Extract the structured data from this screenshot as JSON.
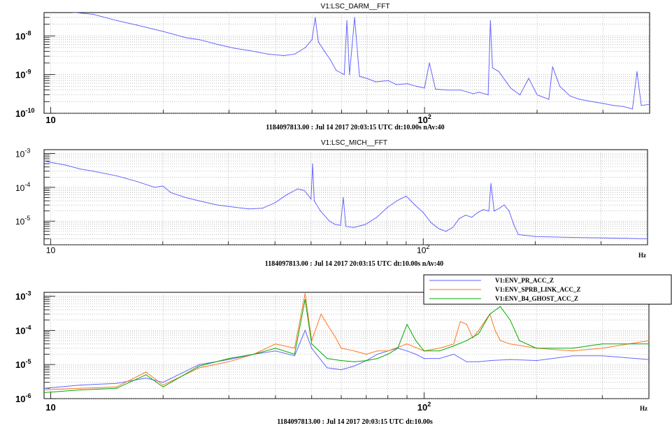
{
  "chart_data": [
    {
      "type": "line",
      "title": "V1:LSC_DARM__FFT",
      "caption": "1184097813.00 : Jul 14 2017 20:03:15 UTC dt:10.00s nAv:40",
      "xunit": "",
      "xscale": "log",
      "yscale": "log",
      "xlim": [
        9.6,
        400
      ],
      "ylim": [
        1e-10,
        4e-08
      ],
      "grid": true,
      "xticks": [
        {
          "v": 10,
          "b": "10",
          "e": ""
        },
        {
          "v": 100,
          "b": "10",
          "e": "2"
        }
      ],
      "yticks": [
        {
          "v": 1e-08,
          "b": "10",
          "e": "-8"
        },
        {
          "v": 1e-09,
          "b": "10",
          "e": "-9"
        },
        {
          "v": 1e-10,
          "b": "10",
          "e": "-10"
        }
      ],
      "colors": [
        "#6666ff"
      ],
      "series": [
        {
          "values": [
            [
              9.6,
              5e-08
            ],
            [
              11,
              4.2e-08
            ],
            [
              13,
              3.6e-08
            ],
            [
              15,
              2.5e-08
            ],
            [
              17,
              1.9e-08
            ],
            [
              20,
              1.3e-08
            ],
            [
              23,
              9e-09
            ],
            [
              25,
              8e-09
            ],
            [
              28,
              6e-09
            ],
            [
              31,
              4.8e-09
            ],
            [
              34,
              4.2e-09
            ],
            [
              38,
              3.4e-09
            ],
            [
              42,
              3.1e-09
            ],
            [
              45,
              3.4e-09
            ],
            [
              48,
              5e-09
            ],
            [
              50,
              8e-09
            ],
            [
              51,
              3e-08
            ],
            [
              52,
              7e-09
            ],
            [
              54,
              4e-09
            ],
            [
              56,
              2.4e-09
            ],
            [
              58,
              1.3e-09
            ],
            [
              61,
              1e-09
            ],
            [
              62,
              2.5e-08
            ],
            [
              63,
              1e-09
            ],
            [
              65,
              3e-08
            ],
            [
              67,
              9e-10
            ],
            [
              70,
              8e-10
            ],
            [
              74,
              6.5e-10
            ],
            [
              80,
              7e-10
            ],
            [
              84,
              5.5e-10
            ],
            [
              90,
              5.8e-10
            ],
            [
              95,
              5e-10
            ],
            [
              100,
              4.5e-10
            ],
            [
              103,
              2e-09
            ],
            [
              107,
              4.2e-10
            ],
            [
              115,
              4e-10
            ],
            [
              125,
              4e-10
            ],
            [
              135,
              3.2e-10
            ],
            [
              140,
              3.5e-10
            ],
            [
              148,
              3e-10
            ],
            [
              150,
              2.5e-08
            ],
            [
              152,
              1.5e-09
            ],
            [
              158,
              1.2e-09
            ],
            [
              170,
              4.5e-10
            ],
            [
              180,
              3e-10
            ],
            [
              190,
              8e-10
            ],
            [
              200,
              3e-10
            ],
            [
              215,
              2.3e-10
            ],
            [
              220,
              1.6e-09
            ],
            [
              230,
              5e-10
            ],
            [
              245,
              2.8e-10
            ],
            [
              260,
              2.3e-10
            ],
            [
              280,
              2e-10
            ],
            [
              300,
              1.8e-10
            ],
            [
              320,
              1.6e-10
            ],
            [
              340,
              1.5e-10
            ],
            [
              360,
              1.3e-10
            ],
            [
              370,
              1.2e-09
            ],
            [
              380,
              1.6e-10
            ],
            [
              400,
              1.7e-10
            ]
          ]
        }
      ]
    },
    {
      "type": "line",
      "title": "V1:LSC_MICH__FFT",
      "caption": "1184097813.00 : Jul 14 2017 20:03:15 UTC dt:10.00s nAv:40",
      "xunit": "Hz",
      "xscale": "log",
      "yscale": "log",
      "xlim": [
        9.6,
        400
      ],
      "ylim": [
        2e-06,
        0.0013
      ],
      "grid": true,
      "xticks": [
        {
          "v": 10,
          "b": "10",
          "e": ""
        },
        {
          "v": 100,
          "b": "10",
          "e": "2"
        }
      ],
      "yticks": [
        {
          "v": 0.001,
          "b": "10",
          "e": "-3"
        },
        {
          "v": 0.0001,
          "b": "10",
          "e": "-4"
        },
        {
          "v": 1e-05,
          "b": "10",
          "e": "-5"
        }
      ],
      "colors": [
        "#6666ff"
      ],
      "series": [
        {
          "values": [
            [
              9.6,
              0.0006
            ],
            [
              10,
              0.00055
            ],
            [
              11,
              0.00045
            ],
            [
              12,
              0.00035
            ],
            [
              13,
              0.0003
            ],
            [
              15,
              0.00022
            ],
            [
              17,
              0.00015
            ],
            [
              19,
              0.0001
            ],
            [
              20,
              0.00011
            ],
            [
              21,
              7e-05
            ],
            [
              23,
              5e-05
            ],
            [
              25,
              4e-05
            ],
            [
              28,
              3e-05
            ],
            [
              31,
              2.6e-05
            ],
            [
              34,
              2.3e-05
            ],
            [
              37,
              2.4e-05
            ],
            [
              40,
              3.5e-05
            ],
            [
              43,
              6e-05
            ],
            [
              46,
              9e-05
            ],
            [
              48,
              8e-05
            ],
            [
              50,
              4.5e-05
            ],
            [
              50.5,
              0.0005
            ],
            [
              51,
              4e-05
            ],
            [
              53,
              2e-05
            ],
            [
              56,
              1e-05
            ],
            [
              58,
              8e-06
            ],
            [
              60,
              7.5e-06
            ],
            [
              61,
              5e-05
            ],
            [
              62,
              7e-06
            ],
            [
              65,
              6.5e-06
            ],
            [
              70,
              8e-06
            ],
            [
              75,
              1.3e-05
            ],
            [
              80,
              2.5e-05
            ],
            [
              85,
              4e-05
            ],
            [
              90,
              5.5e-05
            ],
            [
              95,
              3e-05
            ],
            [
              100,
              1.8e-05
            ],
            [
              105,
              9e-06
            ],
            [
              110,
              6e-06
            ],
            [
              115,
              5e-06
            ],
            [
              120,
              6.5e-06
            ],
            [
              125,
              1.2e-05
            ],
            [
              130,
              1.5e-05
            ],
            [
              135,
              1.3e-05
            ],
            [
              140,
              1.8e-05
            ],
            [
              145,
              2.2e-05
            ],
            [
              150,
              2e-05
            ],
            [
              152,
              0.00013
            ],
            [
              155,
              2e-05
            ],
            [
              160,
              2.4e-05
            ],
            [
              165,
              3e-05
            ],
            [
              170,
              2e-05
            ],
            [
              175,
              8e-06
            ],
            [
              180,
              4e-06
            ],
            [
              200,
              3.5e-06
            ],
            [
              250,
              3.3e-06
            ],
            [
              300,
              3.2e-06
            ],
            [
              350,
              3.1e-06
            ],
            [
              400,
              3e-06
            ]
          ]
        }
      ]
    },
    {
      "type": "line",
      "title": "",
      "caption": "1184097813.00 : Jul 14 2017 20:03:15 UTC dt:10.00s",
      "xunit": "Hz",
      "xscale": "log",
      "yscale": "log",
      "xlim": [
        9.6,
        400
      ],
      "ylim": [
        1e-06,
        0.0013
      ],
      "grid": true,
      "xticks": [
        {
          "v": 10,
          "b": "10",
          "e": ""
        },
        {
          "v": 100,
          "b": "10",
          "e": "2"
        }
      ],
      "yticks": [
        {
          "v": 0.001,
          "b": "10",
          "e": "-3"
        },
        {
          "v": 0.0001,
          "b": "10",
          "e": "-4"
        },
        {
          "v": 1e-05,
          "b": "10",
          "e": "-5"
        },
        {
          "v": 1e-06,
          "b": "10",
          "e": "-6"
        }
      ],
      "legend_position": "top-right",
      "series": [
        {
          "name": "V1:ENV_PR_ACC_Z",
          "color": "#6666ff",
          "values": [
            [
              9.6,
              2e-06
            ],
            [
              12,
              2.5e-06
            ],
            [
              15,
              2.8e-06
            ],
            [
              18,
              4e-06
            ],
            [
              20,
              3e-06
            ],
            [
              25,
              1e-05
            ],
            [
              30,
              1.4e-05
            ],
            [
              35,
              2e-05
            ],
            [
              40,
              2.5e-05
            ],
            [
              45,
              1.8e-05
            ],
            [
              48,
              0.0001
            ],
            [
              50,
              3e-05
            ],
            [
              55,
              8e-06
            ],
            [
              60,
              7e-06
            ],
            [
              65,
              9e-06
            ],
            [
              70,
              1.3e-05
            ],
            [
              75,
              2e-05
            ],
            [
              80,
              2.5e-05
            ],
            [
              85,
              3e-05
            ],
            [
              90,
              2.5e-05
            ],
            [
              95,
              2e-05
            ],
            [
              100,
              1.5e-05
            ],
            [
              110,
              1.5e-05
            ],
            [
              120,
              2e-05
            ],
            [
              130,
              1.2e-05
            ],
            [
              140,
              1.2e-05
            ],
            [
              150,
              1.3e-05
            ],
            [
              170,
              1.4e-05
            ],
            [
              200,
              1.3e-05
            ],
            [
              250,
              1.8e-05
            ],
            [
              300,
              1.8e-05
            ],
            [
              400,
              1.4e-05
            ]
          ]
        },
        {
          "name": "V1:ENV_SPRB_LINK_ACC_Z",
          "color": "#ff7722",
          "values": [
            [
              9.6,
              1.8e-06
            ],
            [
              12,
              2e-06
            ],
            [
              15,
              2.2e-06
            ],
            [
              18,
              6e-06
            ],
            [
              20,
              2.5e-06
            ],
            [
              25,
              8e-06
            ],
            [
              30,
              1.2e-05
            ],
            [
              35,
              2e-05
            ],
            [
              40,
              4e-05
            ],
            [
              45,
              3e-05
            ],
            [
              48,
              0.0012
            ],
            [
              50,
              5e-05
            ],
            [
              53,
              0.0003
            ],
            [
              55,
              0.00015
            ],
            [
              58,
              6e-05
            ],
            [
              60,
              3e-05
            ],
            [
              65,
              2.5e-05
            ],
            [
              70,
              2e-05
            ],
            [
              75,
              2.5e-05
            ],
            [
              80,
              2.5e-05
            ],
            [
              90,
              4e-05
            ],
            [
              100,
              2.5e-05
            ],
            [
              110,
              3e-05
            ],
            [
              120,
              4e-05
            ],
            [
              125,
              0.00018
            ],
            [
              130,
              0.00015
            ],
            [
              135,
              6e-05
            ],
            [
              140,
              0.0001
            ],
            [
              150,
              0.0003
            ],
            [
              155,
              0.0001
            ],
            [
              160,
              5e-05
            ],
            [
              170,
              4e-05
            ],
            [
              200,
              3e-05
            ],
            [
              250,
              2.5e-05
            ],
            [
              300,
              3e-05
            ],
            [
              400,
              5e-05
            ]
          ]
        },
        {
          "name": "V1:ENV_B4_GHOST_ACC_Z",
          "color": "#00aa00",
          "values": [
            [
              9.6,
              1.5e-06
            ],
            [
              12,
              1.8e-06
            ],
            [
              15,
              2e-06
            ],
            [
              18,
              5e-06
            ],
            [
              20,
              2.2e-06
            ],
            [
              25,
              9e-06
            ],
            [
              30,
              1.5e-05
            ],
            [
              35,
              2e-05
            ],
            [
              40,
              3e-05
            ],
            [
              45,
              2e-05
            ],
            [
              48,
              0.0008
            ],
            [
              50,
              4e-05
            ],
            [
              55,
              1.5e-05
            ],
            [
              60,
              1.3e-05
            ],
            [
              65,
              1.2e-05
            ],
            [
              70,
              1.3e-05
            ],
            [
              75,
              1.5e-05
            ],
            [
              80,
              2e-05
            ],
            [
              85,
              3e-05
            ],
            [
              90,
              0.00015
            ],
            [
              95,
              5e-05
            ],
            [
              100,
              2.5e-05
            ],
            [
              110,
              2.5e-05
            ],
            [
              120,
              3.5e-05
            ],
            [
              130,
              5e-05
            ],
            [
              140,
              8e-05
            ],
            [
              150,
              0.0003
            ],
            [
              160,
              0.0005
            ],
            [
              170,
              0.0002
            ],
            [
              180,
              5e-05
            ],
            [
              200,
              3e-05
            ],
            [
              250,
              3e-05
            ],
            [
              300,
              4e-05
            ],
            [
              400,
              4e-05
            ]
          ]
        }
      ]
    }
  ]
}
